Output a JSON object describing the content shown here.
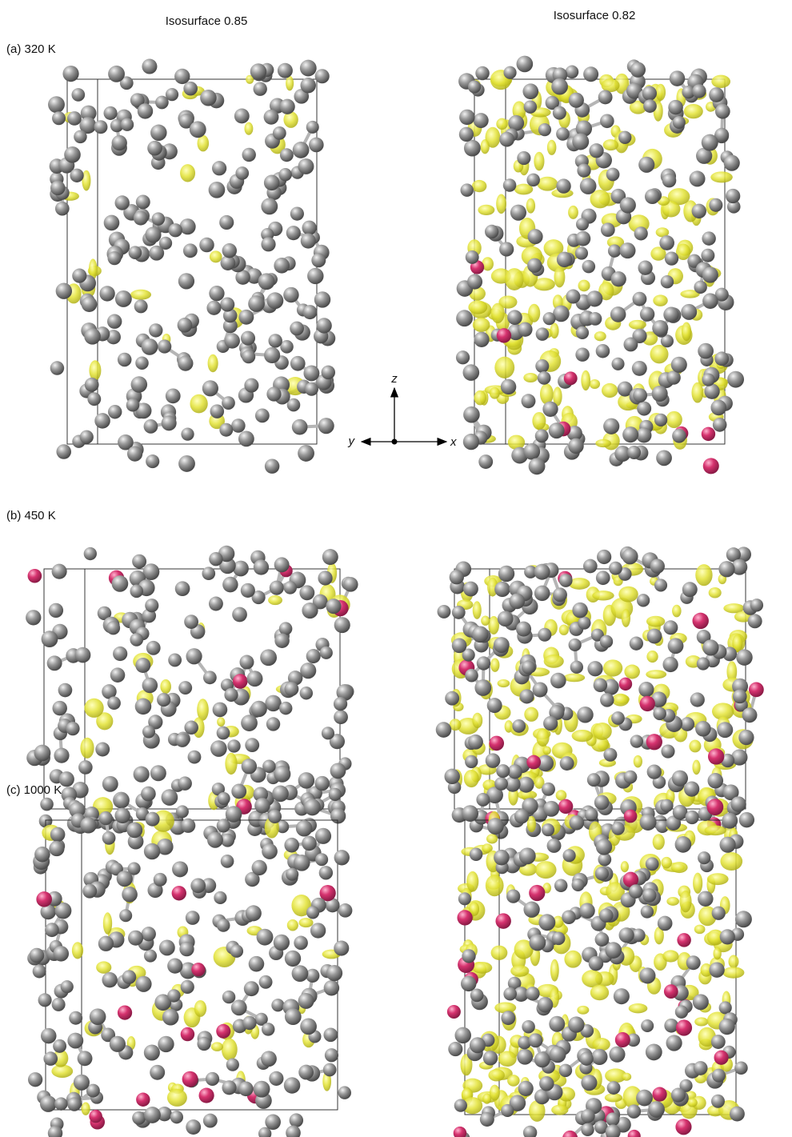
{
  "column_titles": [
    "Isosurface  0.85",
    "Isosurface 0.82"
  ],
  "panels": [
    {
      "label": "(a) 320 K"
    },
    {
      "label": "(b) 450 K"
    },
    {
      "label": "(c) 1000 K"
    }
  ],
  "axes": {
    "z": "z",
    "y": "y",
    "x": "x"
  }
}
